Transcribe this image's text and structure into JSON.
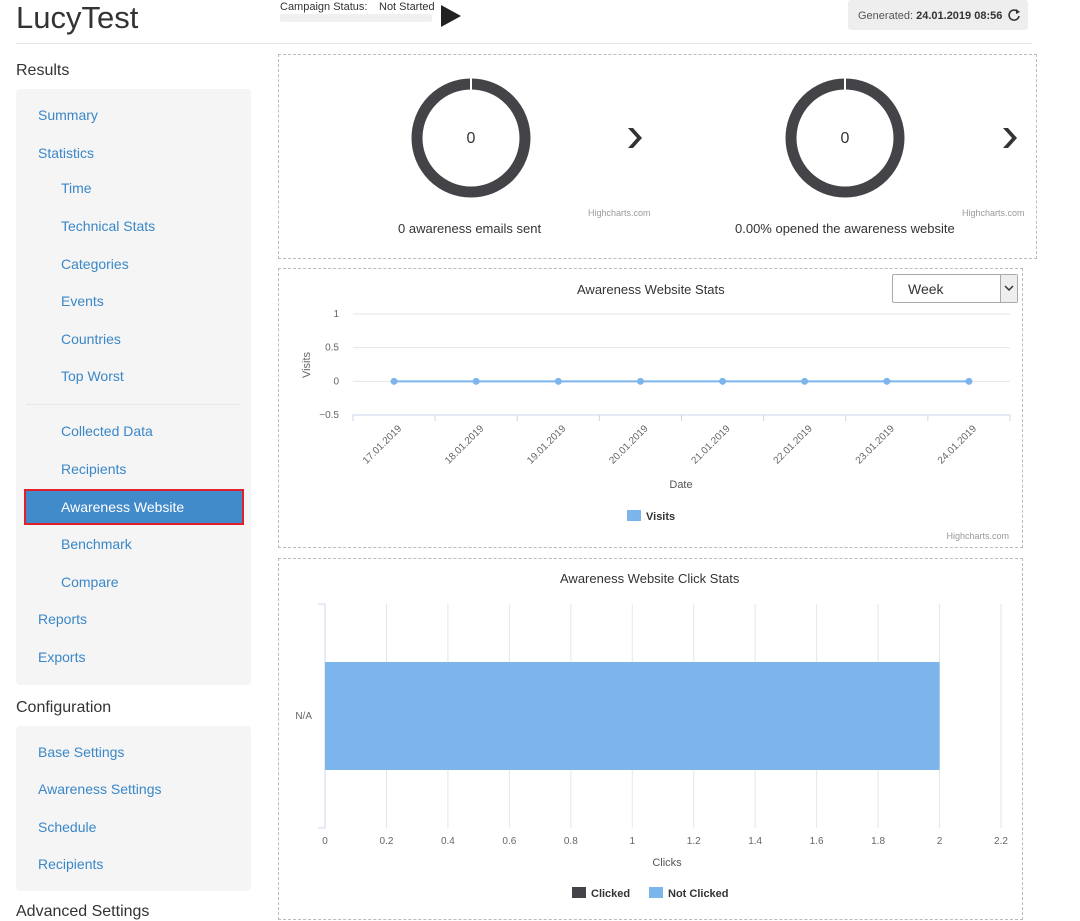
{
  "app": {
    "title": "LucyTest"
  },
  "campaign": {
    "status_label": "Campaign Status:",
    "status_value": "Not Started"
  },
  "generated": {
    "label": "Generated:",
    "value": "24.01.2019 08:56"
  },
  "sidebar": {
    "results_heading": "Results",
    "results_items": [
      {
        "label": "Summary"
      },
      {
        "label": "Statistics"
      },
      {
        "label": "Time"
      },
      {
        "label": "Technical Stats"
      },
      {
        "label": "Categories"
      },
      {
        "label": "Events"
      },
      {
        "label": "Countries"
      },
      {
        "label": "Top Worst"
      },
      {
        "label": "Collected Data"
      },
      {
        "label": "Recipients"
      },
      {
        "label": "Awareness Website"
      },
      {
        "label": "Benchmark"
      },
      {
        "label": "Compare"
      },
      {
        "label": "Reports"
      },
      {
        "label": "Exports"
      }
    ],
    "config_heading": "Configuration",
    "config_items": [
      {
        "label": "Base Settings"
      },
      {
        "label": "Awareness Settings"
      },
      {
        "label": "Schedule"
      },
      {
        "label": "Recipients"
      }
    ],
    "advanced_heading": "Advanced Settings"
  },
  "donuts": [
    {
      "value": "0",
      "caption": "0 awareness emails sent",
      "credit": "Highcharts.com"
    },
    {
      "value": "0",
      "caption": "0.00% opened the awareness website",
      "credit": "Highcharts.com"
    }
  ],
  "colors": {
    "accent": "#428bca",
    "series_blue": "#7cb5ec",
    "series_dark": "#434348",
    "highlight": "#e0202b"
  },
  "chart_data": [
    {
      "type": "line",
      "title": "Awareness Website Stats",
      "xlabel": "Date",
      "ylabel": "Visits",
      "x": [
        "17.01.2019",
        "18.01.2019",
        "19.01.2019",
        "20.01.2019",
        "21.01.2019",
        "22.01.2019",
        "23.01.2019",
        "24.01.2019"
      ],
      "series": [
        {
          "name": "Visits",
          "values": [
            0,
            0,
            0,
            0,
            0,
            0,
            0,
            0
          ]
        }
      ],
      "ylim": [
        -0.5,
        1
      ],
      "yticks": [
        "1",
        "0.5",
        "0",
        "−0.5"
      ],
      "grid": true,
      "legend": "bottom-center",
      "range_select": "Week",
      "credit": "Highcharts.com"
    },
    {
      "type": "bar",
      "title": "Awareness Website Click Stats",
      "xlabel": "Clicks",
      "categories": [
        "N/A"
      ],
      "series": [
        {
          "name": "Clicked",
          "values": [
            0
          ]
        },
        {
          "name": "Not Clicked",
          "values": [
            2
          ]
        }
      ],
      "xlim": [
        0,
        2.2
      ],
      "xticks": [
        "0",
        "0.2",
        "0.4",
        "0.6",
        "0.8",
        "1",
        "1.2",
        "1.4",
        "1.6",
        "1.8",
        "2",
        "2.2"
      ],
      "grid": true,
      "legend": "bottom-center"
    }
  ]
}
